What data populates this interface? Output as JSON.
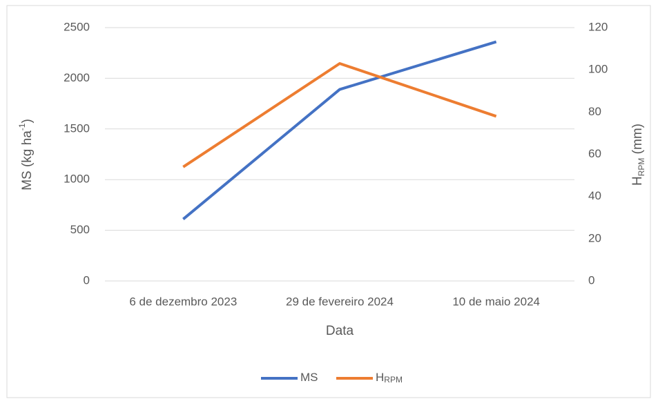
{
  "chart_data": {
    "type": "line",
    "categories": [
      "6 de dezembro 2023",
      "29 de fevereiro 2024",
      "10 de maio 2024"
    ],
    "series": [
      {
        "name": "MS",
        "color": "#4472c4",
        "values": [
          610,
          1890,
          2360
        ]
      },
      {
        "name": "H",
        "name_sub": "RPM",
        "color": "#ed7d31",
        "values": [
          54,
          103,
          78
        ],
        "axis": "y2"
      }
    ],
    "xlabel": "Data",
    "ylabel": {
      "text": "MS (kg ha",
      "sup": "-1",
      "after": ")"
    },
    "y2label": {
      "text": "H",
      "sub": "RPM",
      "after": " (mm)"
    },
    "ylim": [
      0,
      2500
    ],
    "yticks": [
      0,
      500,
      1000,
      1500,
      2000,
      2500
    ],
    "y2lim": [
      0,
      120
    ],
    "y2ticks": [
      0,
      20,
      40,
      60,
      80,
      100,
      120
    ],
    "grid": true,
    "legend": "bottom"
  }
}
